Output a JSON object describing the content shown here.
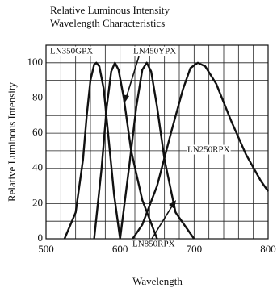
{
  "chart_data": {
    "type": "line",
    "title": [
      "Relative Luminous Intensity",
      "Wavelength Characteristics"
    ],
    "x_label": "Wavelength",
    "y_label": "Relative Luminous Intensity",
    "xlim": [
      500,
      800
    ],
    "ylim": [
      0,
      110
    ],
    "xticks": [
      500,
      600,
      700,
      800
    ],
    "yticks": [
      0,
      20,
      40,
      60,
      80,
      100
    ],
    "x_grid": [
      520,
      540,
      560,
      580,
      620,
      640,
      660,
      680,
      720,
      740,
      760,
      780
    ],
    "y_grid": [
      10,
      30,
      50,
      70,
      90,
      110
    ],
    "grid": true,
    "series": [
      {
        "name": "LN350GPX",
        "color": "#111111",
        "x": [
          525,
          540,
          550,
          555,
          560,
          565,
          568,
          572,
          578,
          585,
          592,
          600
        ],
        "values": [
          0,
          15,
          45,
          70,
          90,
          99,
          100,
          98,
          85,
          55,
          25,
          0
        ]
      },
      {
        "name": "LN450YPX",
        "color": "#111111",
        "x": [
          565,
          575,
          582,
          588,
          593,
          598,
          605,
          615,
          630,
          650
        ],
        "values": [
          0,
          40,
          75,
          95,
          100,
          96,
          80,
          50,
          22,
          0
        ]
      },
      {
        "name": "LN850RPX",
        "color": "#111111",
        "x": [
          600,
          612,
          622,
          630,
          636,
          642,
          650,
          660,
          675,
          700
        ],
        "values": [
          0,
          40,
          75,
          96,
          100,
          95,
          75,
          45,
          15,
          0
        ]
      },
      {
        "name": "LN250RPX",
        "color": "#111111",
        "x": [
          617,
          630,
          650,
          670,
          685,
          695,
          705,
          715,
          730,
          750,
          770,
          790,
          800
        ],
        "values": [
          0,
          8,
          30,
          62,
          85,
          97,
          100,
          98,
          88,
          67,
          48,
          33,
          27
        ]
      }
    ]
  }
}
